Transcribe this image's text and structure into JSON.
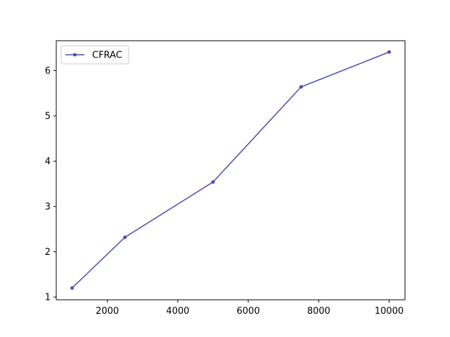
{
  "chart_data": {
    "type": "line",
    "title": "",
    "xlabel": "",
    "ylabel": "",
    "xlim": [
      550,
      10450
    ],
    "ylim": [
      0.94,
      6.66
    ],
    "xticks": [
      2000,
      4000,
      6000,
      8000,
      10000
    ],
    "yticks": [
      1,
      2,
      3,
      4,
      5,
      6
    ],
    "grid": false,
    "legend_position": "top-left",
    "series": [
      {
        "name": "CFRAC",
        "color": "#4c4cb5",
        "marker": "circle",
        "x": [
          1000,
          2500,
          5000,
          7500,
          10000
        ],
        "y": [
          1.2,
          2.32,
          3.54,
          5.64,
          6.41
        ]
      }
    ]
  }
}
